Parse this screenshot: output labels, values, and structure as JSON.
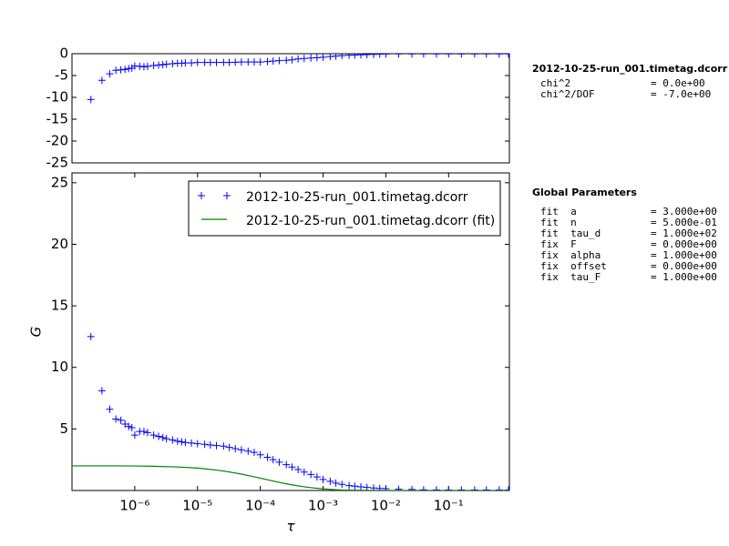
{
  "chart_data": [
    {
      "type": "scatter",
      "xscale": "log",
      "xlim": [
        1e-07,
        0.93
      ],
      "ylim": [
        -25,
        0
      ],
      "yticks": [
        0,
        -5,
        -10,
        -15,
        -20,
        -25
      ],
      "x": [
        2e-07,
        3e-07,
        4e-07,
        5e-07,
        6e-07,
        7e-07,
        8e-07,
        9e-07,
        1e-06,
        1.2e-06,
        1.4e-06,
        1.6e-06,
        2e-06,
        2.4e-06,
        2.8e-06,
        3.2e-06,
        4e-06,
        4.8e-06,
        5.6e-06,
        6.4e-06,
        8e-06,
        1e-05,
        1.3e-05,
        1.6e-05,
        2e-05,
        2.6e-05,
        3.2e-05,
        4e-05,
        5e-05,
        6.4e-05,
        8e-05,
        0.0001,
        0.00013,
        0.00016,
        0.0002,
        0.00026,
        0.00032,
        0.0004,
        0.0005,
        0.00064,
        0.0008,
        0.001,
        0.0013,
        0.0016,
        0.002,
        0.0026,
        0.0032,
        0.004,
        0.005,
        0.0064,
        0.008,
        0.01,
        0.016,
        0.026,
        0.04,
        0.064,
        0.1,
        0.16,
        0.26,
        0.4,
        0.64,
        0.9
      ],
      "series": [
        {
          "color": "#0000ff",
          "marker": "+",
          "values": [
            -10.5,
            -6.1,
            -4.6,
            -3.8,
            -3.7,
            -3.6,
            -3.4,
            -3.3,
            -2.8,
            -2.9,
            -3.0,
            -2.9,
            -2.7,
            -2.6,
            -2.5,
            -2.4,
            -2.3,
            -2.2,
            -2.2,
            -2.1,
            -2.1,
            -2.0,
            -2.0,
            -2.0,
            -2.0,
            -2.0,
            -2.0,
            -1.95,
            -1.9,
            -1.9,
            -1.9,
            -1.9,
            -1.8,
            -1.7,
            -1.6,
            -1.5,
            -1.4,
            -1.2,
            -1.1,
            -1.0,
            -0.9,
            -0.8,
            -0.65,
            -0.55,
            -0.45,
            -0.35,
            -0.3,
            -0.25,
            -0.2,
            -0.15,
            -0.1,
            -0.08,
            -0.05,
            -0.05,
            -0.05,
            -0.05,
            -0.05,
            -0.05,
            -0.05,
            -0.05,
            -0.05,
            -0.05
          ]
        }
      ]
    },
    {
      "type": "line",
      "xscale": "log",
      "xlim": [
        1e-07,
        0.93
      ],
      "ylim": [
        0,
        25.8
      ],
      "ylabel": "G",
      "xlabel": "τ",
      "legend": "upper right",
      "yticks": [
        5,
        10,
        15,
        20,
        25
      ],
      "xticks": [
        {
          "value": 1e-06,
          "label": "10⁻⁶"
        },
        {
          "value": 1e-05,
          "label": "10⁻⁵"
        },
        {
          "value": 0.0001,
          "label": "10⁻⁴"
        },
        {
          "value": 0.001,
          "label": "10⁻³"
        },
        {
          "value": 0.01,
          "label": "10⁻²"
        },
        {
          "value": 0.1,
          "label": "10⁻¹"
        }
      ],
      "series": [
        {
          "name": "2012-10-25-run_001.timetag.dcorr",
          "color": "#0000ff",
          "marker": "+",
          "x": [
            2e-07,
            3e-07,
            4e-07,
            5e-07,
            6e-07,
            7e-07,
            8e-07,
            9e-07,
            1e-06,
            1.2e-06,
            1.4e-06,
            1.6e-06,
            2e-06,
            2.4e-06,
            2.8e-06,
            3.2e-06,
            4e-06,
            4.8e-06,
            5.6e-06,
            6.4e-06,
            8e-06,
            1e-05,
            1.3e-05,
            1.6e-05,
            2e-05,
            2.6e-05,
            3.2e-05,
            4e-05,
            5e-05,
            6.4e-05,
            8e-05,
            0.0001,
            0.00013,
            0.00016,
            0.0002,
            0.00026,
            0.00032,
            0.0004,
            0.0005,
            0.00064,
            0.0008,
            0.001,
            0.0013,
            0.0016,
            0.002,
            0.0026,
            0.0032,
            0.004,
            0.005,
            0.0064,
            0.008,
            0.01,
            0.016,
            0.026,
            0.04,
            0.064,
            0.1,
            0.16,
            0.26,
            0.4,
            0.64,
            0.9
          ],
          "values": [
            12.5,
            8.1,
            6.6,
            5.8,
            5.7,
            5.4,
            5.2,
            5.1,
            4.5,
            4.8,
            4.8,
            4.7,
            4.5,
            4.4,
            4.3,
            4.2,
            4.1,
            4.0,
            3.95,
            3.9,
            3.85,
            3.8,
            3.75,
            3.7,
            3.65,
            3.6,
            3.5,
            3.4,
            3.3,
            3.2,
            3.1,
            2.9,
            2.7,
            2.5,
            2.3,
            2.1,
            1.9,
            1.7,
            1.5,
            1.3,
            1.1,
            0.9,
            0.75,
            0.6,
            0.5,
            0.4,
            0.35,
            0.3,
            0.25,
            0.2,
            0.17,
            0.15,
            0.1,
            0.08,
            0.06,
            0.05,
            0.05,
            0.05,
            0.05,
            0.05,
            0.05,
            0.05
          ]
        },
        {
          "name": "2012-10-25-run_001.timetag.dcorr (fit)",
          "color": "#008000",
          "linestyle": "-",
          "x": [
            1e-07,
            2e-07,
            5e-07,
            1e-06,
            2e-06,
            5e-06,
            1e-05,
            2e-05,
            3e-05,
            5e-05,
            7e-05,
            0.0001,
            0.00015,
            0.0002,
            0.0003,
            0.0005,
            0.0007,
            0.001,
            0.0015,
            0.002,
            0.003,
            0.005,
            0.01,
            0.1,
            0.93
          ],
          "values": [
            2.0,
            2.0,
            2.0,
            1.99,
            1.97,
            1.91,
            1.82,
            1.66,
            1.53,
            1.33,
            1.18,
            1.0,
            0.8,
            0.66,
            0.48,
            0.3,
            0.21,
            0.13,
            0.07,
            0.04,
            0.02,
            0.01,
            0.0,
            0.0,
            0.0
          ]
        }
      ]
    }
  ],
  "side_panel": {
    "title": "2012-10-25-run_001.timetag.dcorr",
    "stats": [
      [
        "chi^2",
        "= 0.0e+00"
      ],
      [
        "chi^2/DOF",
        "= -7.0e+00"
      ]
    ],
    "params_title": "Global Parameters",
    "params": [
      [
        "fit  a",
        "= 3.000e+00"
      ],
      [
        "fit  n",
        "= 5.000e-01"
      ],
      [
        "fit  tau_d",
        "= 1.000e+02"
      ],
      [
        "fix  F",
        "= 0.000e+00"
      ],
      [
        "fix  alpha",
        "= 1.000e+00"
      ],
      [
        "fix  offset",
        "= 0.000e+00"
      ],
      [
        "fix  tau_F",
        "= 1.000e+00"
      ]
    ]
  }
}
